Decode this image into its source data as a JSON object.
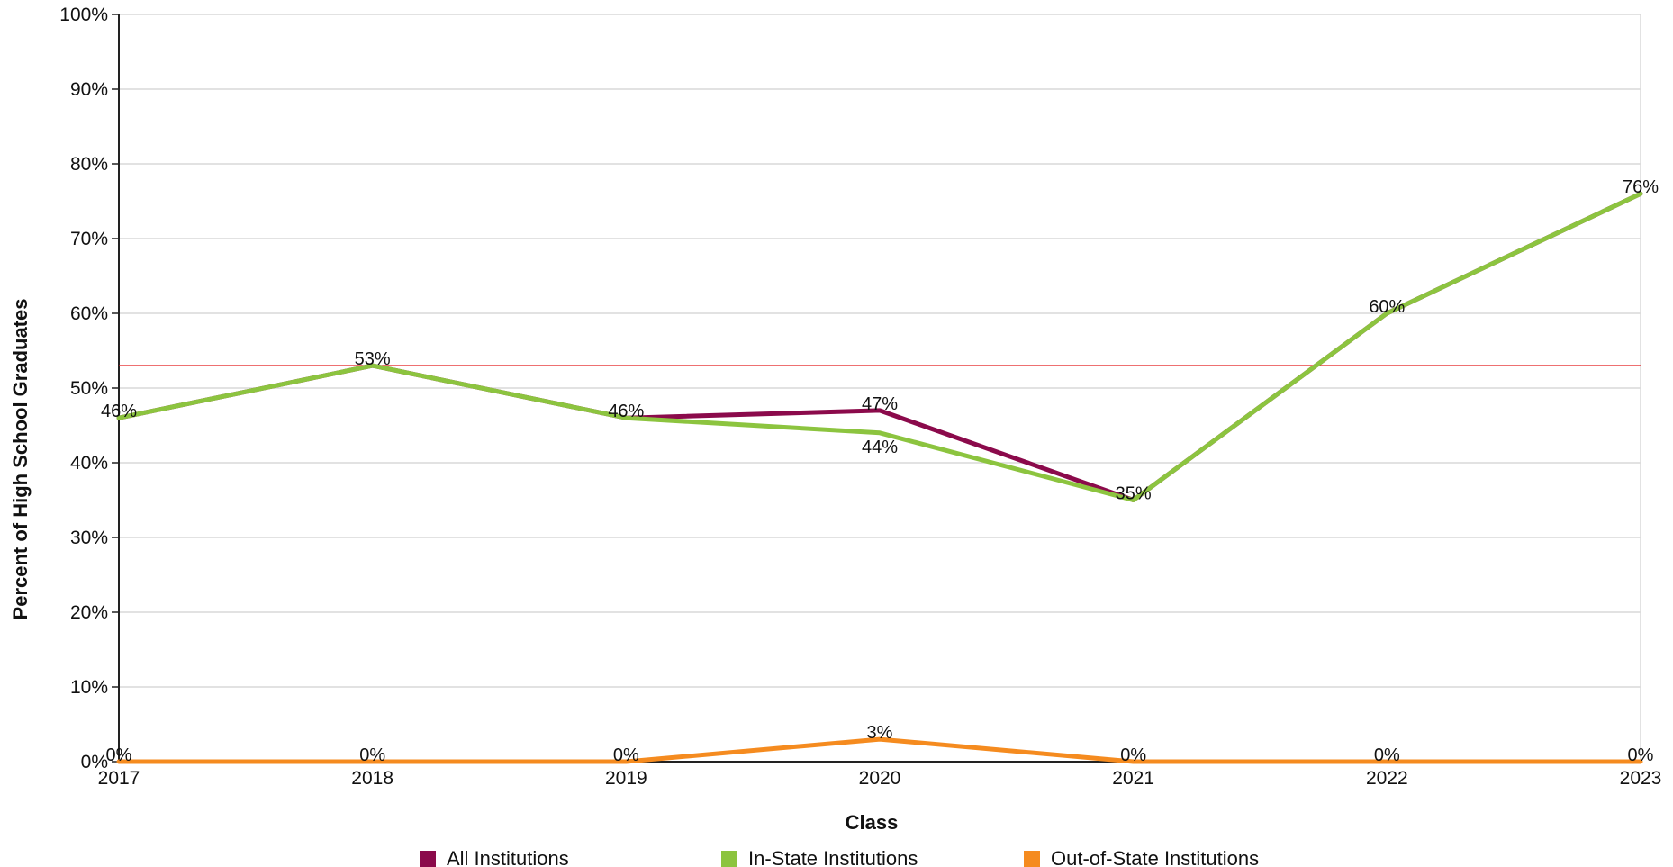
{
  "chart_data": {
    "type": "line",
    "xlabel": "Class",
    "ylabel": "Percent of High School Graduates",
    "categories": [
      "2017",
      "2018",
      "2019",
      "2020",
      "2021",
      "2022",
      "2023"
    ],
    "ylim": [
      0,
      100
    ],
    "yticks": [
      0,
      10,
      20,
      30,
      40,
      50,
      60,
      70,
      80,
      90,
      100
    ],
    "ytick_suffix": "%",
    "grid": true,
    "legend_position": "bottom",
    "reference_line": {
      "value": 53,
      "color": "#e31a1c"
    },
    "series": [
      {
        "name": "All Institutions",
        "color": "#8b0a4b",
        "values": [
          46,
          53,
          46,
          47,
          35,
          60,
          76
        ],
        "labels": [
          "",
          "",
          "",
          "47%",
          "",
          "",
          ""
        ]
      },
      {
        "name": "In-State Institutions",
        "color": "#8cc43f",
        "values": [
          46,
          53,
          46,
          44,
          35,
          60,
          76
        ],
        "labels": [
          "46%",
          "53%",
          "46%",
          "44%",
          "35%",
          "60%",
          "76%"
        ]
      },
      {
        "name": "Out-of-State Institutions",
        "color": "#f58b1f",
        "values": [
          0,
          0,
          0,
          3,
          0,
          0,
          0
        ],
        "labels": [
          "0%",
          "0%",
          "0%",
          "3%",
          "0%",
          "0%",
          "0%"
        ]
      }
    ]
  }
}
